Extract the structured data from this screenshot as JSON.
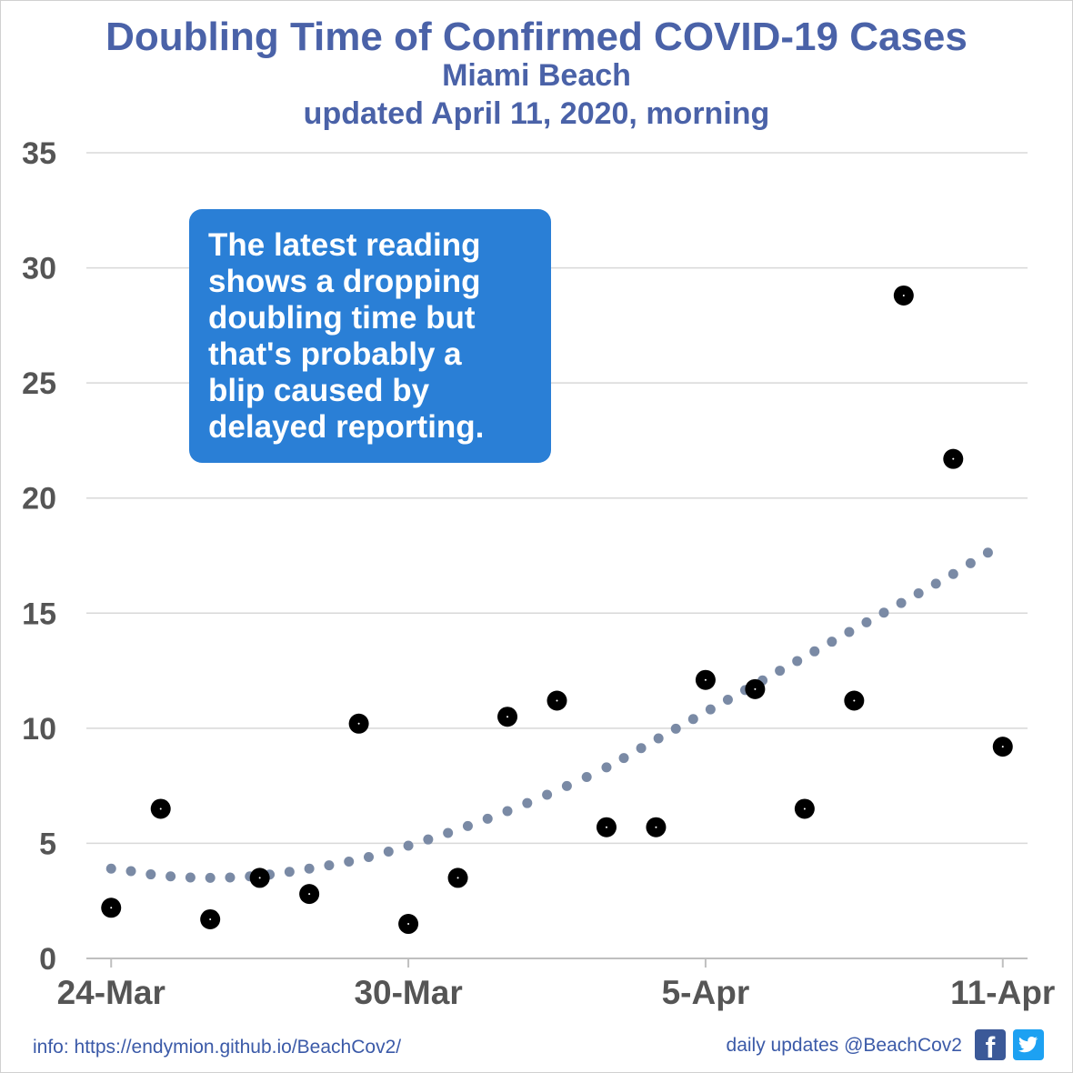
{
  "chart_data": {
    "type": "scatter",
    "title": "Doubling Time of Confirmed COVID-19 Cases",
    "subtitle_location": "Miami Beach",
    "subtitle_updated": "updated April 11, 2020, morning",
    "ylim": [
      0,
      35
    ],
    "yticks": [
      0,
      5,
      10,
      15,
      20,
      25,
      30,
      35
    ],
    "xlim_days": [
      -0.5,
      18.5
    ],
    "xticks": [
      {
        "day": 0,
        "label": "24-Mar"
      },
      {
        "day": 6,
        "label": "30-Mar"
      },
      {
        "day": 12,
        "label": "5-Apr"
      },
      {
        "day": 18,
        "label": "11-Apr"
      }
    ],
    "grid": true,
    "series": [
      {
        "kind": "points",
        "x": [
          "24-Mar",
          "25-Mar",
          "26-Mar",
          "27-Mar",
          "28-Mar",
          "29-Mar",
          "30-Mar",
          "31-Mar",
          "1-Apr",
          "2-Apr",
          "3-Apr",
          "4-Apr",
          "5-Apr",
          "6-Apr",
          "7-Apr",
          "8-Apr",
          "9-Apr",
          "10-Apr",
          "11-Apr"
        ],
        "values": [
          2.2,
          6.5,
          1.7,
          3.5,
          2.8,
          10.2,
          1.5,
          3.5,
          10.5,
          11.2,
          5.7,
          5.7,
          12.1,
          11.7,
          6.5,
          11.2,
          28.8,
          21.7,
          9.2
        ],
        "color": "#000000"
      },
      {
        "kind": "trend",
        "x": [
          "24-Mar",
          "25-Mar",
          "26-Mar",
          "27-Mar",
          "28-Mar",
          "29-Mar",
          "30-Mar",
          "31-Mar",
          "1-Apr",
          "2-Apr",
          "3-Apr",
          "4-Apr",
          "5-Apr",
          "6-Apr",
          "7-Apr",
          "8-Apr",
          "9-Apr",
          "10-Apr",
          "11-Apr"
        ],
        "values": [
          3.9,
          3.6,
          3.5,
          3.6,
          3.9,
          4.3,
          4.9,
          5.6,
          6.4,
          7.3,
          8.3,
          9.5,
          10.7,
          11.9,
          13.1,
          14.3,
          15.5,
          16.7,
          17.9
        ],
        "color": "#7a8aa5",
        "style": "dotted"
      }
    ],
    "annotation": "The latest reading shows a dropping doubling time but that's probably a blip caused by delayed reporting."
  },
  "callout": {
    "line1": "The latest reading",
    "line2": "shows a dropping",
    "line3": "doubling time but",
    "line4": "that's probably a",
    "line5": "blip caused by",
    "line6": "delayed reporting."
  },
  "footer": {
    "info": "info: https://endymion.github.io/BeachCov2/",
    "updates": "daily updates @BeachCov2",
    "facebook_icon": "facebook-icon",
    "twitter_icon": "twitter-icon"
  },
  "colors": {
    "title": "#4a62a8",
    "callout_bg": "#2a7fd6",
    "trend": "#7a8aa5",
    "axis_text": "#555555"
  }
}
